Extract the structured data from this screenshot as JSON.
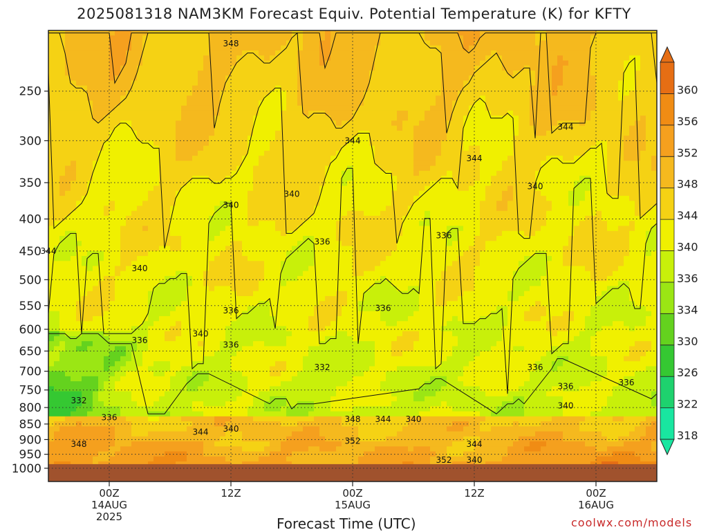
{
  "chart_data": {
    "type": "heatmap",
    "title": "2025081318 NAM3KM Forecast Equiv. Potential Temperature (K) for KFTY",
    "xlabel": "Forecast Time (UTC)",
    "ylabel": "",
    "credit": "coolwx.com/models",
    "y_scale": "log-pressure",
    "y_range_hpa": [
      1000,
      200
    ],
    "y_ticks": [
      250,
      300,
      350,
      400,
      450,
      500,
      550,
      600,
      650,
      700,
      750,
      800,
      850,
      900,
      950,
      1000
    ],
    "x_range_hours": [
      "2025-08-13 18Z",
      "2025-08-16 06Z"
    ],
    "x_ticks": [
      {
        "time": "2025-08-14 00Z",
        "label": [
          "00Z",
          "14AUG",
          "2025"
        ]
      },
      {
        "time": "2025-08-14 12Z",
        "label": [
          "12Z"
        ]
      },
      {
        "time": "2025-08-15 00Z",
        "label": [
          "00Z",
          "15AUG"
        ]
      },
      {
        "time": "2025-08-15 12Z",
        "label": [
          "12Z"
        ]
      },
      {
        "time": "2025-08-16 00Z",
        "label": [
          "00Z",
          "16AUG"
        ]
      }
    ],
    "grid": true,
    "colorbar": {
      "placement": "right",
      "levels": [
        318,
        322,
        326,
        330,
        334,
        336,
        340,
        344,
        348,
        352,
        356,
        360
      ],
      "colors": [
        "#19e6a0",
        "#1ed26e",
        "#35c832",
        "#64d21e",
        "#9be614",
        "#c8f00a",
        "#f0f000",
        "#f5d214",
        "#f5b91e",
        "#f5a01e",
        "#f08c14",
        "#e66e14"
      ]
    },
    "contour_labels": [
      {
        "text": "348",
        "time": "2025-08-14 12Z",
        "p": 210
      },
      {
        "text": "344",
        "time": "2025-08-15 00Z",
        "p": 300
      },
      {
        "text": "344",
        "time": "2025-08-15 12Z",
        "p": 320
      },
      {
        "text": "344",
        "time": "2025-08-15 21Z",
        "p": 285
      },
      {
        "text": "340",
        "time": "2025-08-14 12Z",
        "p": 380
      },
      {
        "text": "340",
        "time": "2025-08-14 18Z",
        "p": 365
      },
      {
        "text": "340",
        "time": "2025-08-15 18Z",
        "p": 355
      },
      {
        "text": "344",
        "time": "2025-08-13 18Z",
        "p": 450
      },
      {
        "text": "340",
        "time": "2025-08-14 03Z",
        "p": 480
      },
      {
        "text": "336",
        "time": "2025-08-14 21Z",
        "p": 435
      },
      {
        "text": "336",
        "time": "2025-08-15 09Z",
        "p": 425
      },
      {
        "text": "336",
        "time": "2025-08-14 12Z",
        "p": 560
      },
      {
        "text": "336",
        "time": "2025-08-15 03Z",
        "p": 555
      },
      {
        "text": "340",
        "time": "2025-08-14 09Z",
        "p": 610
      },
      {
        "text": "336",
        "time": "2025-08-14 03Z",
        "p": 625
      },
      {
        "text": "336",
        "time": "2025-08-14 12Z",
        "p": 635
      },
      {
        "text": "332",
        "time": "2025-08-14 21Z",
        "p": 690
      },
      {
        "text": "336",
        "time": "2025-08-15 18Z",
        "p": 690
      },
      {
        "text": "336",
        "time": "2025-08-15 21Z",
        "p": 740
      },
      {
        "text": "336",
        "time": "2025-08-16 03Z",
        "p": 730
      },
      {
        "text": "332",
        "time": "2025-08-13 21Z",
        "p": 780
      },
      {
        "text": "336",
        "time": "2025-08-14 00Z",
        "p": 830
      },
      {
        "text": "340",
        "time": "2025-08-15 21Z",
        "p": 795
      },
      {
        "text": "348",
        "time": "2025-08-15 00Z",
        "p": 835
      },
      {
        "text": "344",
        "time": "2025-08-15 03Z",
        "p": 835
      },
      {
        "text": "340",
        "time": "2025-08-15 06Z",
        "p": 835
      },
      {
        "text": "344",
        "time": "2025-08-14 09Z",
        "p": 875
      },
      {
        "text": "340",
        "time": "2025-08-14 12Z",
        "p": 865
      },
      {
        "text": "348",
        "time": "2025-08-13 21Z",
        "p": 915
      },
      {
        "text": "352",
        "time": "2025-08-15 00Z",
        "p": 905
      },
      {
        "text": "344",
        "time": "2025-08-15 12Z",
        "p": 915
      },
      {
        "text": "352",
        "time": "2025-08-15 09Z",
        "p": 970
      },
      {
        "text": "340",
        "time": "2025-08-15 12Z",
        "p": 970
      }
    ]
  }
}
